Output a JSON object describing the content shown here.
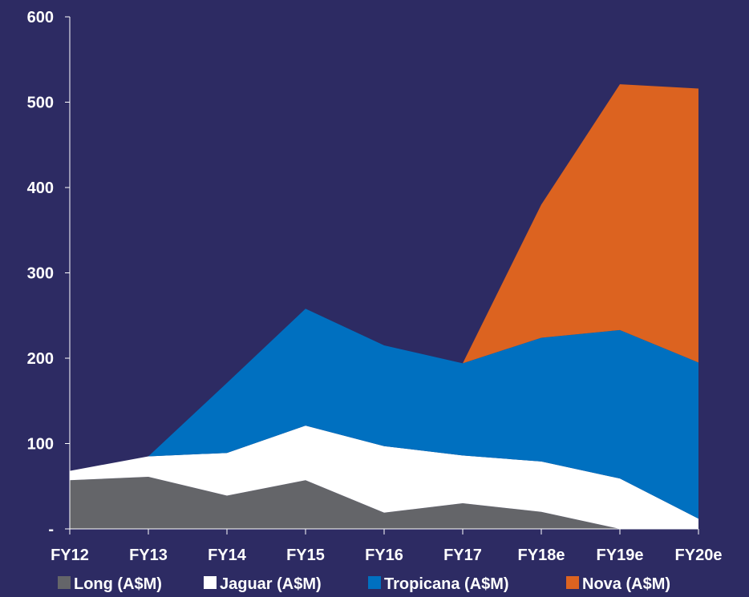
{
  "chart_data": {
    "type": "area",
    "stacked": true,
    "categories": [
      "FY12",
      "FY13",
      "FY14",
      "FY15",
      "FY16",
      "FY17",
      "FY18e",
      "FY19e",
      "FY20e"
    ],
    "series": [
      {
        "name": "Long (A$M)",
        "color": "#646569",
        "values": [
          57,
          61,
          39,
          57,
          19,
          30,
          20,
          0,
          0
        ]
      },
      {
        "name": "Jaguar (A$M)",
        "color": "#ffffff",
        "values": [
          11,
          24,
          50,
          64,
          78,
          56,
          59,
          59,
          12
        ]
      },
      {
        "name": "Tropicana (A$M)",
        "color": "#0070c0",
        "values": [
          0,
          0,
          82,
          137,
          118,
          108,
          145,
          174,
          183
        ]
      },
      {
        "name": "Nova (A$M)",
        "color": "#dc6320",
        "values": [
          0,
          0,
          0,
          0,
          0,
          0,
          156,
          288,
          321
        ]
      }
    ],
    "y_ticks": [
      "-",
      "100",
      "200",
      "300",
      "400",
      "500",
      "600"
    ],
    "ylim": [
      0,
      600
    ],
    "legend_position": "bottom",
    "grid": false,
    "background": "#2d2b63"
  }
}
